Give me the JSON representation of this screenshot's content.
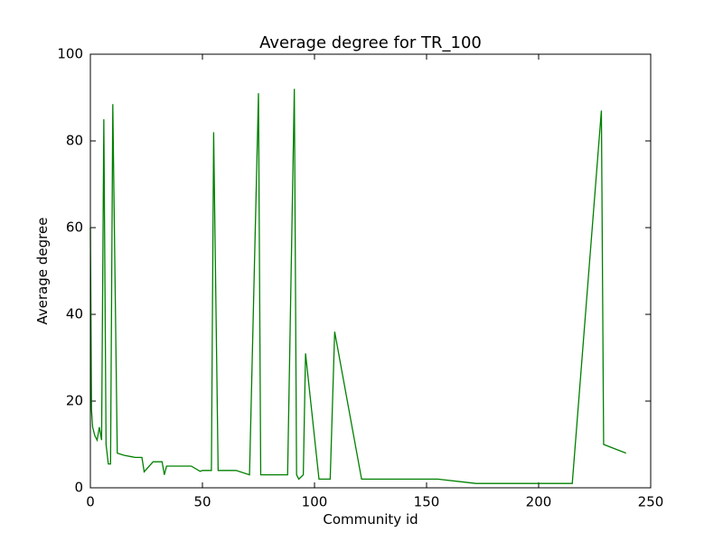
{
  "chart_data": {
    "type": "line",
    "title": "Average degree for TR_100",
    "x_label": "Community id",
    "y_label": "Average degree",
    "x": [
      0,
      0.5,
      1,
      2,
      3,
      4,
      5,
      6,
      7,
      8,
      9,
      10,
      12,
      15,
      18,
      20,
      23,
      24,
      28,
      32,
      33,
      34,
      40,
      45,
      49,
      50,
      54,
      55,
      57,
      60,
      65,
      71,
      75,
      76,
      80,
      85,
      88,
      91,
      92,
      93,
      95,
      96,
      102,
      104,
      107,
      109,
      121,
      130,
      155,
      172,
      200,
      215,
      228,
      229,
      239
    ],
    "series": [
      {
        "name": "Average degree",
        "color": "#008000",
        "values": [
          60,
          18,
          14,
          12,
          11,
          14,
          11,
          85,
          10,
          5.5,
          5.5,
          88.5,
          8,
          7.5,
          7.2,
          7,
          7,
          3.7,
          6,
          6,
          3,
          5,
          5,
          5,
          3.8,
          4,
          4,
          82,
          4,
          4,
          4,
          3,
          91,
          3,
          3,
          3,
          3,
          92,
          3,
          2,
          3,
          31,
          2,
          2,
          2,
          36,
          2,
          2,
          2,
          1,
          1,
          1,
          87,
          10,
          8
        ]
      }
    ],
    "xlim": [
      0,
      250
    ],
    "ylim": [
      0,
      100
    ],
    "xticks": [
      0,
      50,
      100,
      150,
      200,
      250
    ],
    "yticks": [
      0,
      20,
      40,
      60,
      80,
      100
    ],
    "grid": false
  }
}
